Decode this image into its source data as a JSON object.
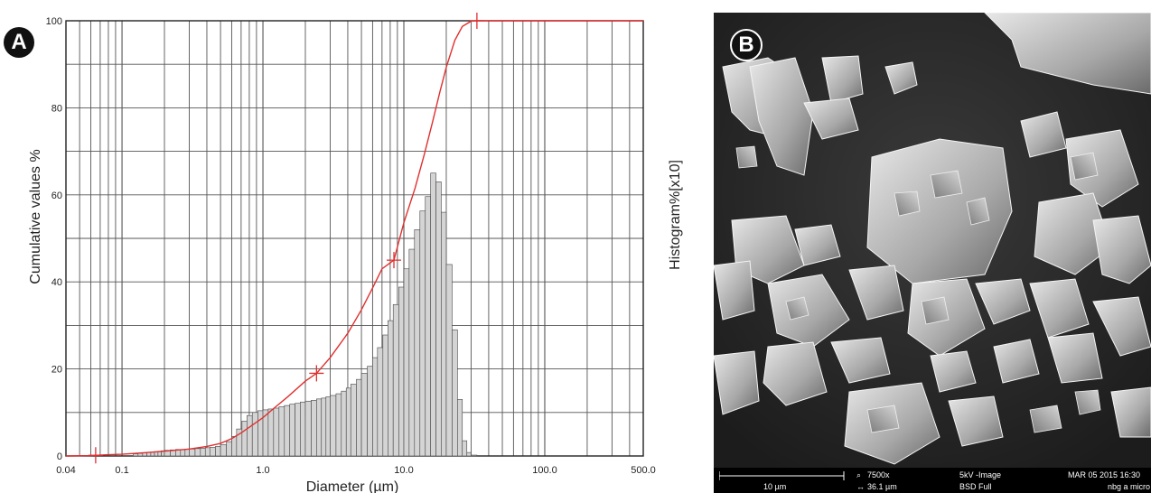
{
  "panels": {
    "a_label": "A",
    "b_label": "B"
  },
  "chart_data": {
    "type": "bar",
    "xscale": "log",
    "xlim": [
      0.04,
      500.0
    ],
    "ylim": [
      0,
      100
    ],
    "xlabel": "Diameter (µm)",
    "ylabel": "Cumulative values %",
    "y2label": "Histogram%[x10]",
    "xtick_labels": [
      "0.04",
      "0.1",
      "1.0",
      "10.0",
      "100.0",
      "500.0"
    ],
    "ytick_labels": [
      "0",
      "20",
      "40",
      "60",
      "80",
      "100"
    ],
    "grid": true,
    "colors": {
      "cumulative": "#e03030",
      "bars": "#d4d4d4",
      "bar_edge": "#444444"
    },
    "series": [
      {
        "type": "bar",
        "x": [
          0.12,
          0.13,
          0.14,
          0.15,
          0.16,
          0.17,
          0.18,
          0.19,
          0.2,
          0.22,
          0.24,
          0.26,
          0.28,
          0.3,
          0.33,
          0.36,
          0.39,
          0.42,
          0.46,
          0.5,
          0.55,
          0.6,
          0.65,
          0.71,
          0.77,
          0.84,
          0.92,
          1.0,
          1.09,
          1.19,
          1.3,
          1.42,
          1.55,
          1.69,
          1.84,
          2.0,
          2.2,
          2.4,
          2.6,
          2.8,
          3.0,
          3.3,
          3.6,
          3.9,
          4.2,
          4.6,
          5.0,
          5.5,
          6.0,
          6.5,
          7.1,
          7.7,
          8.4,
          9.2,
          10.0,
          10.9,
          11.9,
          13.0,
          14.2,
          15.5,
          16.9,
          18.4,
          20.0,
          22.0,
          24.0,
          26.0,
          28.0,
          30.0,
          33.0,
          36.0
        ],
        "values": [
          0.5,
          0.6,
          0.7,
          0.8,
          0.9,
          1.0,
          1.1,
          1.2,
          1.3,
          1.4,
          1.5,
          1.5,
          1.6,
          1.6,
          1.7,
          1.8,
          1.9,
          2.0,
          2.2,
          2.6,
          3.3,
          4.5,
          6.2,
          8.0,
          9.3,
          10.0,
          10.4,
          10.6,
          10.8,
          11.0,
          11.3,
          11.6,
          11.9,
          12.1,
          12.4,
          12.6,
          12.8,
          13.1,
          13.3,
          13.6,
          13.9,
          14.3,
          14.9,
          15.6,
          16.5,
          17.6,
          19.0,
          20.6,
          22.6,
          24.9,
          27.8,
          31.1,
          34.8,
          38.8,
          43.0,
          47.5,
          52.0,
          56.3,
          59.6,
          65.0,
          63.0,
          56.0,
          44.0,
          29.0,
          13.0,
          3.5,
          0.8,
          0.2,
          0.0,
          0.0
        ]
      },
      {
        "type": "line",
        "name": "Cumulative values",
        "x": [
          0.04,
          0.06,
          0.08,
          0.1,
          0.15,
          0.2,
          0.3,
          0.4,
          0.5,
          0.6,
          0.7,
          0.8,
          1.0,
          1.2,
          1.5,
          2.0,
          2.4,
          3.0,
          4.0,
          5.0,
          6.0,
          7.0,
          8.5,
          10.0,
          12.0,
          14.0,
          16.0,
          18.0,
          20.0,
          23.0,
          26.0,
          30.0,
          33.0,
          40.0,
          60.0,
          100.0,
          200.0,
          500.0
        ],
        "values": [
          0,
          0.1,
          0.3,
          0.4,
          0.8,
          1.1,
          1.6,
          2.2,
          2.9,
          4.0,
          5.3,
          6.6,
          8.8,
          11.0,
          13.6,
          17.2,
          19.0,
          22.6,
          28.2,
          33.6,
          38.6,
          43.0,
          45.0,
          53.6,
          61.5,
          69.4,
          76.8,
          83.6,
          89.3,
          95.5,
          98.7,
          99.9,
          100,
          100,
          100,
          100,
          100,
          100
        ],
        "markers_x": [
          0.065,
          2.4,
          8.5,
          33.0
        ]
      }
    ]
  },
  "sem_info": {
    "scale_bar": "10 µm",
    "magnification": "7500x",
    "hfw": "36.1 µm",
    "mode": "5kV -Image",
    "detector": "BSD Full",
    "date": "MAR 05 2015 16:30",
    "operator": "nbg a micro"
  }
}
